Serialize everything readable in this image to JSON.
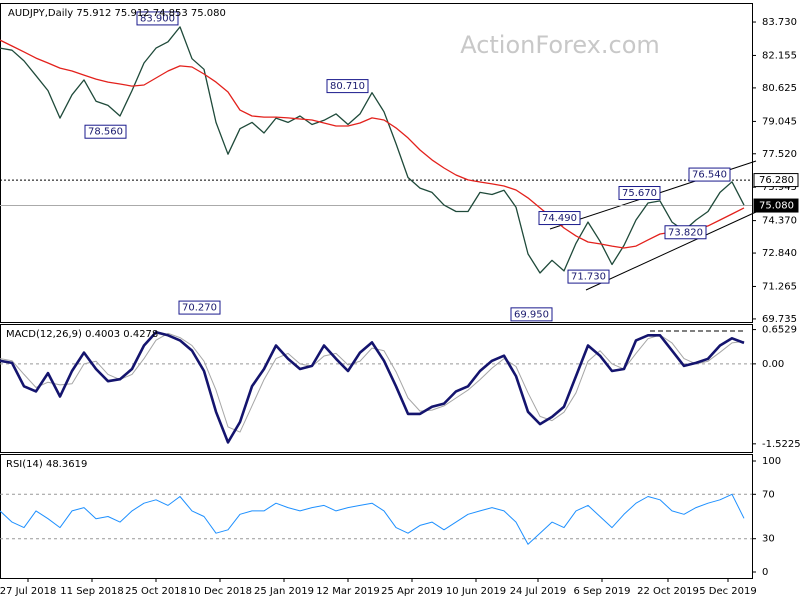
{
  "chart_data": [
    {
      "type": "line",
      "title": "AUDJPY,Daily  75.912 75.912 74.853 75.080",
      "watermark": "ActionForex.com",
      "xlim": [
        0,
        376
      ],
      "ylim": [
        69.59,
        84.58
      ],
      "yticks": [
        {
          "value": 69.735,
          "label": "69.735"
        },
        {
          "value": 71.265,
          "label": "71.265"
        },
        {
          "value": 72.84,
          "label": "72.840"
        },
        {
          "value": 74.37,
          "label": "74.370"
        },
        {
          "value": 75.945,
          "label": "75.945"
        },
        {
          "value": 77.52,
          "label": "77.520"
        },
        {
          "value": 79.045,
          "label": "79.045"
        },
        {
          "value": 80.625,
          "label": "80.625"
        },
        {
          "value": 82.155,
          "label": "82.155"
        },
        {
          "value": 83.73,
          "label": "83.730"
        }
      ],
      "x": [
        0,
        6,
        12,
        18,
        24,
        30,
        36,
        42,
        48,
        54,
        60,
        66,
        72,
        78,
        84,
        90,
        96,
        102,
        108,
        114,
        120,
        126,
        132,
        138,
        144,
        150,
        156,
        162,
        168,
        174,
        180,
        186,
        192,
        198,
        204,
        210,
        216,
        222,
        228,
        234,
        240,
        246,
        252,
        258,
        264,
        270,
        276,
        282,
        288,
        294,
        300,
        306,
        312,
        318,
        324,
        330,
        336,
        342,
        348,
        354,
        360,
        366,
        372
      ],
      "series": [
        {
          "color": "#1f4a3a",
          "values": [
            82.5,
            82.4,
            81.9,
            81.2,
            80.5,
            79.2,
            80.3,
            81.0,
            80.0,
            79.8,
            79.3,
            80.5,
            81.8,
            82.5,
            82.8,
            83.5,
            82.0,
            81.5,
            79.0,
            77.5,
            78.7,
            79.0,
            78.5,
            79.2,
            79.0,
            79.3,
            78.9,
            79.1,
            79.4,
            78.9,
            79.4,
            80.4,
            79.5,
            78.0,
            76.4,
            75.9,
            75.7,
            75.1,
            74.8,
            74.8,
            75.7,
            75.6,
            75.8,
            75.0,
            72.8,
            71.9,
            72.5,
            72.0,
            73.3,
            74.3,
            73.4,
            72.3,
            73.2,
            74.4,
            75.2,
            75.3,
            74.3,
            73.9,
            74.4,
            74.8,
            75.7,
            76.2,
            75.1
          ]
        },
        {
          "color": "#e3211c",
          "values": [
            82.88,
            82.6,
            82.32,
            82.03,
            81.8,
            81.56,
            81.42,
            81.23,
            81.04,
            80.9,
            80.81,
            80.71,
            80.76,
            81.09,
            81.42,
            81.66,
            81.61,
            81.28,
            80.9,
            80.43,
            79.58,
            79.3,
            79.25,
            79.25,
            79.21,
            79.16,
            79.11,
            78.97,
            78.83,
            78.83,
            78.97,
            79.21,
            79.11,
            78.74,
            78.27,
            77.7,
            77.23,
            76.85,
            76.52,
            76.29,
            76.19,
            76.1,
            76.0,
            75.81,
            75.44,
            74.97,
            74.5,
            74.02,
            73.65,
            73.36,
            73.27,
            73.17,
            73.08,
            73.17,
            73.46,
            73.74,
            73.83,
            73.83,
            73.93,
            74.12,
            74.4,
            74.68,
            74.97
          ]
        }
      ],
      "annotations": [
        {
          "x": 89,
          "value": 83.9,
          "label": "83.900"
        },
        {
          "x": 63,
          "value": 78.56,
          "label": "78.560"
        },
        {
          "x": 184,
          "value": 80.71,
          "label": "80.710"
        },
        {
          "x": 110,
          "value": 70.27,
          "label": "70.270"
        },
        {
          "x": 276,
          "value": 69.95,
          "label": "69.950"
        },
        {
          "x": 290,
          "value": 74.49,
          "label": "74.490"
        },
        {
          "x": 284,
          "value": 71.73,
          "label": "71.730"
        },
        {
          "x": 330,
          "value": 75.67,
          "label": "75.670"
        },
        {
          "x": 365,
          "value": 76.54,
          "label": "76.540"
        },
        {
          "x": 353,
          "value": 73.82,
          "label": "73.820"
        }
      ],
      "hlines": [
        {
          "value": 76.28,
          "label": "76.280",
          "style": "dotted"
        },
        {
          "value": 75.08,
          "label": "75.080",
          "style": "current"
        }
      ]
    },
    {
      "type": "line",
      "title": "MACD(12,26,9) 0.4003 0.4278",
      "xlim": [
        0,
        376
      ],
      "ylim": [
        -1.678,
        0.74
      ],
      "yticks": [
        -1.5225,
        {
          "value": 0,
          "label": "0.00"
        },
        0.6529
      ],
      "levels": [
        0
      ],
      "x": [
        0,
        6,
        12,
        18,
        24,
        30,
        36,
        42,
        48,
        54,
        60,
        66,
        72,
        78,
        84,
        90,
        96,
        102,
        108,
        114,
        120,
        126,
        132,
        138,
        144,
        150,
        156,
        162,
        168,
        174,
        180,
        186,
        192,
        198,
        204,
        210,
        216,
        222,
        228,
        234,
        240,
        246,
        252,
        258,
        264,
        270,
        276,
        282,
        288,
        294,
        300,
        306,
        312,
        318,
        324,
        330,
        336,
        342,
        348,
        354,
        360,
        366,
        372
      ],
      "series": [
        {
          "color": "#a6a6a6",
          "values": [
            0.1,
            0.06,
            -0.2,
            -0.45,
            -0.35,
            -0.4,
            -0.38,
            0.0,
            0.05,
            -0.2,
            -0.3,
            -0.2,
            0.1,
            0.45,
            0.58,
            0.5,
            0.35,
            0.05,
            -0.5,
            -1.2,
            -1.3,
            -0.8,
            -0.3,
            0.1,
            0.2,
            0.0,
            -0.05,
            0.15,
            0.2,
            -0.02,
            0.05,
            0.3,
            0.25,
            -0.15,
            -0.65,
            -0.9,
            -0.88,
            -0.8,
            -0.65,
            -0.5,
            -0.3,
            -0.08,
            0.1,
            -0.05,
            -0.55,
            -1.0,
            -1.08,
            -0.92,
            -0.55,
            0.05,
            0.25,
            0.0,
            -0.1,
            0.2,
            0.48,
            0.55,
            0.4,
            0.1,
            0.0,
            0.05,
            0.22,
            0.4,
            0.428
          ]
        },
        {
          "color": "#14146e",
          "values": [
            0.058,
            0.019,
            -0.427,
            -0.524,
            -0.175,
            -0.622,
            -0.136,
            0.214,
            -0.097,
            -0.33,
            -0.291,
            -0.097,
            0.35,
            0.602,
            0.544,
            0.447,
            0.252,
            -0.136,
            -0.913,
            -1.496,
            -1.107,
            -0.427,
            -0.097,
            0.35,
            0.097,
            -0.097,
            -0.039,
            0.35,
            0.097,
            -0.136,
            0.214,
            0.408,
            0.058,
            -0.427,
            -0.952,
            -0.952,
            -0.816,
            -0.757,
            -0.524,
            -0.427,
            -0.136,
            0.058,
            0.155,
            -0.233,
            -0.913,
            -1.146,
            -1.01,
            -0.816,
            -0.233,
            0.35,
            0.155,
            -0.136,
            -0.097,
            0.447,
            0.544,
            0.544,
            0.252,
            -0.039,
            0.019,
            0.097,
            0.35,
            0.486,
            0.4
          ]
        }
      ]
    },
    {
      "type": "line",
      "title": "RSI(14) 48.3619",
      "xlim": [
        0,
        376
      ],
      "ylim": [
        -5.4,
        105.4
      ],
      "yticks": [
        0,
        30,
        70,
        100
      ],
      "levels": [
        30,
        70
      ],
      "xticks": [
        {
          "value": 14,
          "label": "27 Jul 2018"
        },
        {
          "value": 46,
          "label": "11 Sep 2018"
        },
        {
          "value": 78,
          "label": "25 Oct 2018"
        },
        {
          "value": 110,
          "label": "10 Dec 2018"
        },
        {
          "value": 142,
          "label": "25 Jan 2019"
        },
        {
          "value": 174,
          "label": "12 Mar 2019"
        },
        {
          "value": 206,
          "label": "25 Apr 2019"
        },
        {
          "value": 238,
          "label": "10 Jun 2019"
        },
        {
          "value": 269,
          "label": "24 Jul 2019"
        },
        {
          "value": 301,
          "label": "6 Sep 2019"
        },
        {
          "value": 334,
          "label": "22 Oct 2019"
        },
        {
          "value": 364,
          "label": "5 Dec 2019"
        }
      ],
      "x": [
        0,
        6,
        12,
        18,
        24,
        30,
        36,
        42,
        48,
        54,
        60,
        66,
        72,
        78,
        84,
        90,
        96,
        102,
        108,
        114,
        120,
        126,
        132,
        138,
        144,
        150,
        156,
        162,
        168,
        174,
        180,
        186,
        192,
        198,
        204,
        210,
        216,
        222,
        228,
        234,
        240,
        246,
        252,
        258,
        264,
        270,
        276,
        282,
        288,
        294,
        300,
        306,
        312,
        318,
        324,
        330,
        336,
        342,
        348,
        354,
        360,
        366,
        372
      ],
      "series": [
        {
          "color": "#1e90ff",
          "values": [
            55,
            45,
            40,
            55,
            48,
            40,
            55,
            58,
            48,
            50,
            45,
            55,
            62,
            65,
            60,
            68,
            55,
            50,
            35,
            38,
            52,
            55,
            55,
            62,
            58,
            55,
            58,
            60,
            55,
            58,
            60,
            62,
            55,
            40,
            35,
            42,
            45,
            38,
            45,
            52,
            55,
            58,
            55,
            45,
            25,
            35,
            45,
            40,
            55,
            60,
            50,
            40,
            52,
            62,
            68,
            65,
            55,
            52,
            58,
            62,
            65,
            70,
            48.4
          ]
        }
      ]
    }
  ]
}
